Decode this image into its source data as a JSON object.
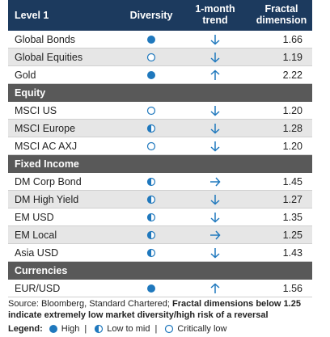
{
  "header": {
    "columns": [
      "Level 1",
      "Diversity",
      "1-month trend",
      "Fractal dimension"
    ]
  },
  "groups": [
    {
      "rows": [
        {
          "name": "Global Bonds",
          "diversity": "high",
          "trend": "down",
          "fractal": "1.66"
        },
        {
          "name": "Global Equities",
          "diversity": "low",
          "trend": "down",
          "fractal": "1.19"
        },
        {
          "name": "Gold",
          "diversity": "high",
          "trend": "up",
          "fractal": "2.22"
        }
      ]
    },
    {
      "title": "Equity",
      "rows": [
        {
          "name": "MSCI US",
          "diversity": "low",
          "trend": "down",
          "fractal": "1.20"
        },
        {
          "name": "MSCI Europe",
          "diversity": "mid",
          "trend": "down",
          "fractal": "1.28"
        },
        {
          "name": "MSCI AC AXJ",
          "diversity": "low",
          "trend": "down",
          "fractal": "1.20"
        }
      ]
    },
    {
      "title": "Fixed Income",
      "rows": [
        {
          "name": "DM Corp Bond",
          "diversity": "mid",
          "trend": "right",
          "fractal": "1.45"
        },
        {
          "name": "DM High Yield",
          "diversity": "mid",
          "trend": "down",
          "fractal": "1.27"
        },
        {
          "name": "EM USD",
          "diversity": "mid",
          "trend": "down",
          "fractal": "1.35"
        },
        {
          "name": "EM Local",
          "diversity": "mid",
          "trend": "right",
          "fractal": "1.25"
        },
        {
          "name": "Asia USD",
          "diversity": "mid",
          "trend": "down",
          "fractal": "1.43"
        }
      ]
    },
    {
      "title": "Currencies",
      "rows": [
        {
          "name": "EUR/USD",
          "diversity": "high",
          "trend": "up",
          "fractal": "1.56"
        }
      ]
    }
  ],
  "footer": {
    "source": "Source: Bloomberg, Standard Chartered;",
    "note": "Fractal dimensions below 1.25 indicate extremely low market diversity/high risk of a reversal"
  },
  "legend": {
    "title": "Legend:",
    "items": [
      {
        "level": "high",
        "label": "High"
      },
      {
        "level": "mid",
        "label": "Low to mid"
      },
      {
        "level": "low",
        "label": "Critically low"
      }
    ]
  }
}
